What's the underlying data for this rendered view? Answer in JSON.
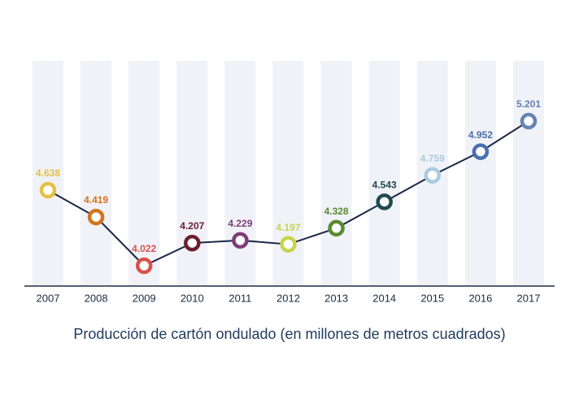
{
  "chart_data": {
    "type": "line",
    "title": "Producción de cartón ondulado (en millones de metros cuadrados)",
    "categories": [
      "2007",
      "2008",
      "2009",
      "2010",
      "2011",
      "2012",
      "2013",
      "2014",
      "2015",
      "2016",
      "2017"
    ],
    "values": [
      4.638,
      4.419,
      4.022,
      4.207,
      4.229,
      4.197,
      4.328,
      4.543,
      4.759,
      4.952,
      5.201
    ],
    "colors": [
      "#e6bf45",
      "#d3731c",
      "#d9524a",
      "#6a1e2d",
      "#7d3d79",
      "#c6d44c",
      "#5b8b31",
      "#1f4b4d",
      "#a9cde0",
      "#4a6fae",
      "#6583b3"
    ],
    "line_color": "#1a2846"
  }
}
